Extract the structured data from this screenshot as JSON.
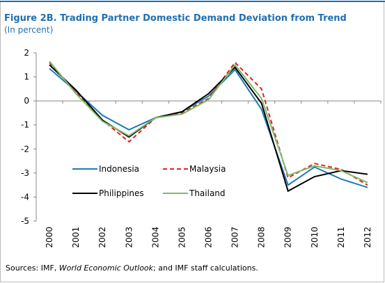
{
  "chart_data": {
    "type": "line",
    "title": "Figure 2B. Trading Partner Domestic Demand Deviation from Trend",
    "subtitle": "(In percent)",
    "source": [
      "Sources: IMF, ",
      "World Economic Outlook",
      "; and IMF staff calculations."
    ],
    "categories": [
      "2000",
      "2001",
      "2002",
      "2003",
      "2004",
      "2005",
      "2006",
      "2007",
      "2008",
      "2009",
      "2010",
      "2011",
      "2012"
    ],
    "series": [
      {
        "name": "Indonesia",
        "color": "#1a7ab5",
        "style": "solid",
        "values": [
          1.35,
          0.4,
          -0.6,
          -1.2,
          -0.7,
          -0.45,
          0.2,
          1.3,
          -0.35,
          -3.5,
          -2.75,
          -3.25,
          -3.6
        ]
      },
      {
        "name": "Malaysia",
        "color": "#e02020",
        "style": "dashed",
        "values": [
          1.6,
          0.35,
          -0.8,
          -1.7,
          -0.7,
          -0.5,
          0.1,
          1.6,
          0.5,
          -3.2,
          -2.6,
          -2.85,
          -3.5
        ]
      },
      {
        "name": "Philippines",
        "color": "#000000",
        "style": "solid",
        "values": [
          1.5,
          0.45,
          -0.8,
          -1.5,
          -0.7,
          -0.45,
          0.3,
          1.4,
          -0.1,
          -3.75,
          -3.15,
          -2.9,
          -3.05
        ]
      },
      {
        "name": "Thailand",
        "color": "#7fb96b",
        "style": "solid",
        "values": [
          1.65,
          0.3,
          -0.85,
          -1.45,
          -0.7,
          -0.55,
          0.05,
          1.5,
          0.1,
          -3.1,
          -2.7,
          -2.9,
          -3.4
        ]
      }
    ],
    "ylim": [
      -5,
      2
    ],
    "yticks": [
      -5,
      -4,
      -3,
      -2,
      -1,
      0,
      1,
      2
    ],
    "grid": false
  }
}
